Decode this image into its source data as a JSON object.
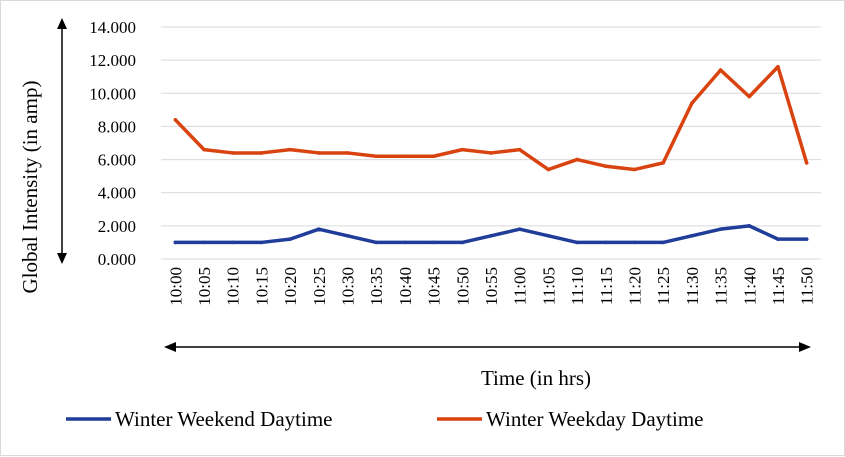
{
  "chart_data": {
    "type": "line",
    "title": "",
    "xlabel": "Time (in hrs)",
    "ylabel": "Global Intensity (in amp)",
    "ylim": [
      0,
      14
    ],
    "y_ticks": [
      "0.000",
      "2.000",
      "4.000",
      "6.000",
      "8.000",
      "10.000",
      "12.000",
      "14.000"
    ],
    "grid": "horizontal",
    "legend_position": "bottom",
    "categories": [
      "10:00",
      "10:05",
      "10:10",
      "10:15",
      "10:20",
      "10:25",
      "10:30",
      "10:35",
      "10:40",
      "10:45",
      "10:50",
      "10:55",
      "11:00",
      "11:05",
      "11:10",
      "11:15",
      "11:20",
      "11:25",
      "11:30",
      "11:35",
      "11:40",
      "11:45",
      "11:50"
    ],
    "series": [
      {
        "name": "Winter Weekend Daytime",
        "color": "#1f3d99",
        "values": [
          1.0,
          1.0,
          1.0,
          1.0,
          1.2,
          1.8,
          1.4,
          1.0,
          1.0,
          1.0,
          1.0,
          1.4,
          1.8,
          1.4,
          1.0,
          1.0,
          1.0,
          1.0,
          1.4,
          1.8,
          2.0,
          1.2,
          1.2
        ]
      },
      {
        "name": "Winter Weekday Daytime",
        "color": "#d94310",
        "values": [
          8.4,
          6.6,
          6.4,
          6.4,
          6.6,
          6.4,
          6.4,
          6.2,
          6.2,
          6.2,
          6.6,
          6.4,
          6.6,
          5.4,
          6.0,
          5.6,
          5.4,
          5.8,
          9.4,
          11.4,
          9.8,
          11.6,
          5.8
        ]
      }
    ]
  }
}
